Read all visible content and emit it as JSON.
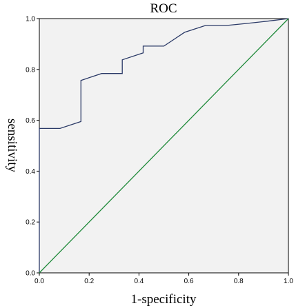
{
  "chart_data": {
    "type": "line",
    "title": "ROC",
    "xlabel": "1-specificity",
    "ylabel": "sensitivity",
    "xlim": [
      0,
      1
    ],
    "ylim": [
      0,
      1
    ],
    "xticks": [
      "0.0",
      "0.2",
      "0.4",
      "0.6",
      "0.8",
      "1.0"
    ],
    "yticks": [
      "0.0",
      "0.2",
      "0.4",
      "0.6",
      "0.8",
      "1.0"
    ],
    "grid": false,
    "plot_background": "#f2f2f2",
    "series": [
      {
        "color": "#2b3a67",
        "x": [
          0.0,
          0.0,
          0.083,
          0.167,
          0.167,
          0.25,
          0.333,
          0.333,
          0.417,
          0.417,
          0.5,
          0.583,
          0.667,
          0.75,
          0.833,
          0.917,
          1.0
        ],
        "y": [
          0.0,
          0.568,
          0.568,
          0.595,
          0.757,
          0.784,
          0.784,
          0.838,
          0.865,
          0.892,
          0.892,
          0.946,
          0.973,
          0.973,
          0.981,
          0.99,
          1.0
        ]
      },
      {
        "color": "#1f8a3a",
        "x": [
          0,
          1
        ],
        "y": [
          0,
          1
        ]
      }
    ]
  }
}
